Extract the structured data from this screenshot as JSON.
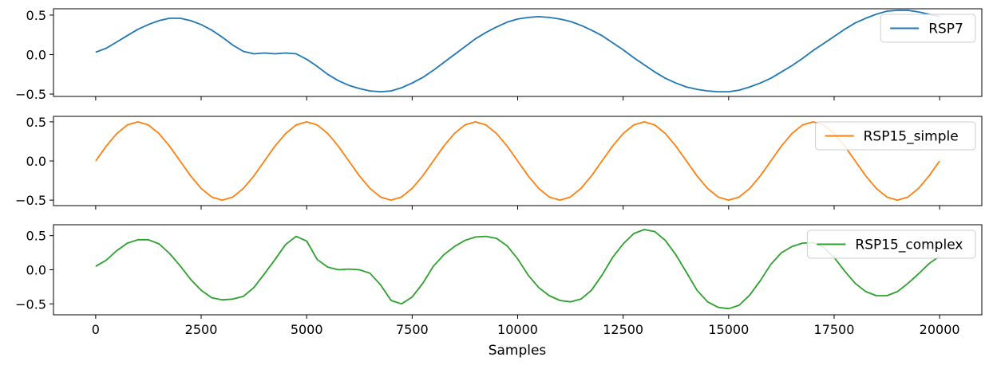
{
  "figure": {
    "xlabel": "Samples",
    "x_ticks": [
      0,
      2500,
      5000,
      7500,
      10000,
      12500,
      15000,
      17500,
      20000
    ],
    "x_tick_labels": [
      "0",
      "2500",
      "5000",
      "7500",
      "10000",
      "12500",
      "15000",
      "17500",
      "20000"
    ],
    "xlim": [
      -1000,
      21000
    ]
  },
  "chart_data": [
    {
      "type": "line",
      "title": "",
      "xlabel": "",
      "ylabel": "",
      "ylim": [
        -0.53,
        0.58
      ],
      "y_ticks": [
        -0.5,
        0.0,
        0.5
      ],
      "y_tick_labels": [
        "−0.5",
        "0.0",
        "0.5"
      ],
      "legend_position": "top-right",
      "series": [
        {
          "name": "RSP7",
          "color": "#1f77b4",
          "x": [
            0,
            250,
            500,
            750,
            1000,
            1250,
            1500,
            1750,
            2000,
            2250,
            2500,
            2750,
            3000,
            3250,
            3500,
            3750,
            4000,
            4250,
            4500,
            4750,
            5000,
            5250,
            5500,
            5750,
            6000,
            6250,
            6500,
            6750,
            7000,
            7250,
            7500,
            7750,
            8000,
            8250,
            8500,
            8750,
            9000,
            9250,
            9500,
            9750,
            10000,
            10250,
            10500,
            10750,
            11000,
            11250,
            11500,
            11750,
            12000,
            12250,
            12500,
            12750,
            13000,
            13250,
            13500,
            13750,
            14000,
            14250,
            14500,
            14750,
            15000,
            15250,
            15500,
            15750,
            16000,
            16250,
            16500,
            16750,
            17000,
            17250,
            17500,
            17750,
            18000,
            18250,
            18500,
            18750,
            19000,
            19250,
            19500,
            19750,
            20000
          ],
          "values": [
            0.03,
            0.08,
            0.16,
            0.24,
            0.32,
            0.38,
            0.43,
            0.46,
            0.46,
            0.43,
            0.38,
            0.31,
            0.22,
            0.12,
            0.04,
            0.01,
            0.02,
            0.01,
            0.02,
            0.01,
            -0.06,
            -0.15,
            -0.25,
            -0.33,
            -0.39,
            -0.43,
            -0.46,
            -0.47,
            -0.46,
            -0.42,
            -0.36,
            -0.29,
            -0.2,
            -0.1,
            0.0,
            0.1,
            0.2,
            0.28,
            0.35,
            0.41,
            0.45,
            0.47,
            0.48,
            0.47,
            0.45,
            0.42,
            0.37,
            0.31,
            0.24,
            0.15,
            0.06,
            -0.04,
            -0.13,
            -0.22,
            -0.3,
            -0.36,
            -0.41,
            -0.44,
            -0.46,
            -0.47,
            -0.47,
            -0.45,
            -0.41,
            -0.36,
            -0.3,
            -0.22,
            -0.14,
            -0.05,
            0.05,
            0.14,
            0.23,
            0.32,
            0.4,
            0.46,
            0.51,
            0.55,
            0.56,
            0.56,
            0.54,
            0.51,
            0.48
          ]
        }
      ]
    },
    {
      "type": "line",
      "title": "",
      "xlabel": "",
      "ylabel": "",
      "ylim": [
        -0.57,
        0.57
      ],
      "y_ticks": [
        -0.5,
        0.0,
        0.5
      ],
      "y_tick_labels": [
        "−0.5",
        "0.0",
        "0.5"
      ],
      "legend_position": "top-right",
      "series": [
        {
          "name": "RSP15_simple",
          "color": "#ff7f0e",
          "x": [
            0,
            250,
            500,
            750,
            1000,
            1250,
            1500,
            1750,
            2000,
            2250,
            2500,
            2750,
            3000,
            3250,
            3500,
            3750,
            4000,
            4250,
            4500,
            4750,
            5000,
            5250,
            5500,
            5750,
            6000,
            6250,
            6500,
            6750,
            7000,
            7250,
            7500,
            7750,
            8000,
            8250,
            8500,
            8750,
            9000,
            9250,
            9500,
            9750,
            10000,
            10250,
            10500,
            10750,
            11000,
            11250,
            11500,
            11750,
            12000,
            12250,
            12500,
            12750,
            13000,
            13250,
            13500,
            13750,
            14000,
            14250,
            14500,
            14750,
            15000,
            15250,
            15500,
            15750,
            16000,
            16250,
            16500,
            16750,
            17000,
            17250,
            17500,
            17750,
            18000,
            18250,
            18500,
            18750,
            19000,
            19250,
            19500,
            19750,
            20000
          ],
          "values": [
            0.0,
            0.19,
            0.35,
            0.46,
            0.5,
            0.46,
            0.35,
            0.19,
            0.0,
            -0.19,
            -0.35,
            -0.46,
            -0.5,
            -0.46,
            -0.35,
            -0.19,
            0.0,
            0.19,
            0.35,
            0.46,
            0.5,
            0.46,
            0.35,
            0.19,
            0.0,
            -0.19,
            -0.35,
            -0.46,
            -0.5,
            -0.46,
            -0.35,
            -0.19,
            0.0,
            0.19,
            0.35,
            0.46,
            0.5,
            0.46,
            0.35,
            0.19,
            0.0,
            -0.19,
            -0.35,
            -0.46,
            -0.5,
            -0.46,
            -0.35,
            -0.19,
            0.0,
            0.19,
            0.35,
            0.46,
            0.5,
            0.46,
            0.35,
            0.19,
            0.0,
            -0.19,
            -0.35,
            -0.46,
            -0.5,
            -0.46,
            -0.35,
            -0.19,
            0.0,
            0.19,
            0.35,
            0.46,
            0.5,
            0.46,
            0.35,
            0.19,
            0.0,
            -0.19,
            -0.35,
            -0.46,
            -0.5,
            -0.46,
            -0.35,
            -0.19,
            0.0
          ]
        }
      ]
    },
    {
      "type": "line",
      "title": "",
      "xlabel": "Samples",
      "ylabel": "",
      "ylim": [
        -0.66,
        0.66
      ],
      "y_ticks": [
        -0.5,
        0.0,
        0.5
      ],
      "y_tick_labels": [
        "−0.5",
        "0.0",
        "0.5"
      ],
      "legend_position": "top-right",
      "series": [
        {
          "name": "RSP15_complex",
          "color": "#2ca02c",
          "x": [
            0,
            250,
            500,
            750,
            1000,
            1250,
            1500,
            1750,
            2000,
            2250,
            2500,
            2750,
            3000,
            3250,
            3500,
            3750,
            4000,
            4250,
            4500,
            4750,
            5000,
            5250,
            5500,
            5750,
            6000,
            6250,
            6500,
            6750,
            7000,
            7250,
            7500,
            7750,
            8000,
            8250,
            8500,
            8750,
            9000,
            9250,
            9500,
            9750,
            10000,
            10250,
            10500,
            10750,
            11000,
            11250,
            11500,
            11750,
            12000,
            12250,
            12500,
            12750,
            13000,
            13250,
            13500,
            13750,
            14000,
            14250,
            14500,
            14750,
            15000,
            15250,
            15500,
            15750,
            16000,
            16250,
            16500,
            16750,
            17000,
            17250,
            17500,
            17750,
            18000,
            18250,
            18500,
            18750,
            19000,
            19250,
            19500,
            19750,
            20000
          ],
          "values": [
            0.05,
            0.14,
            0.28,
            0.39,
            0.44,
            0.44,
            0.38,
            0.24,
            0.06,
            -0.14,
            -0.3,
            -0.41,
            -0.44,
            -0.43,
            -0.39,
            -0.26,
            -0.06,
            0.15,
            0.37,
            0.49,
            0.42,
            0.15,
            0.04,
            0.0,
            0.01,
            0.0,
            -0.05,
            -0.22,
            -0.45,
            -0.5,
            -0.4,
            -0.2,
            0.05,
            0.22,
            0.34,
            0.43,
            0.48,
            0.49,
            0.46,
            0.35,
            0.16,
            -0.08,
            -0.26,
            -0.38,
            -0.45,
            -0.47,
            -0.43,
            -0.3,
            -0.08,
            0.18,
            0.38,
            0.53,
            0.59,
            0.56,
            0.43,
            0.22,
            -0.04,
            -0.3,
            -0.47,
            -0.55,
            -0.57,
            -0.52,
            -0.37,
            -0.16,
            0.08,
            0.25,
            0.34,
            0.39,
            0.4,
            0.33,
            0.18,
            -0.02,
            -0.2,
            -0.32,
            -0.38,
            -0.38,
            -0.32,
            -0.2,
            -0.06,
            0.09,
            0.2
          ]
        }
      ]
    }
  ]
}
